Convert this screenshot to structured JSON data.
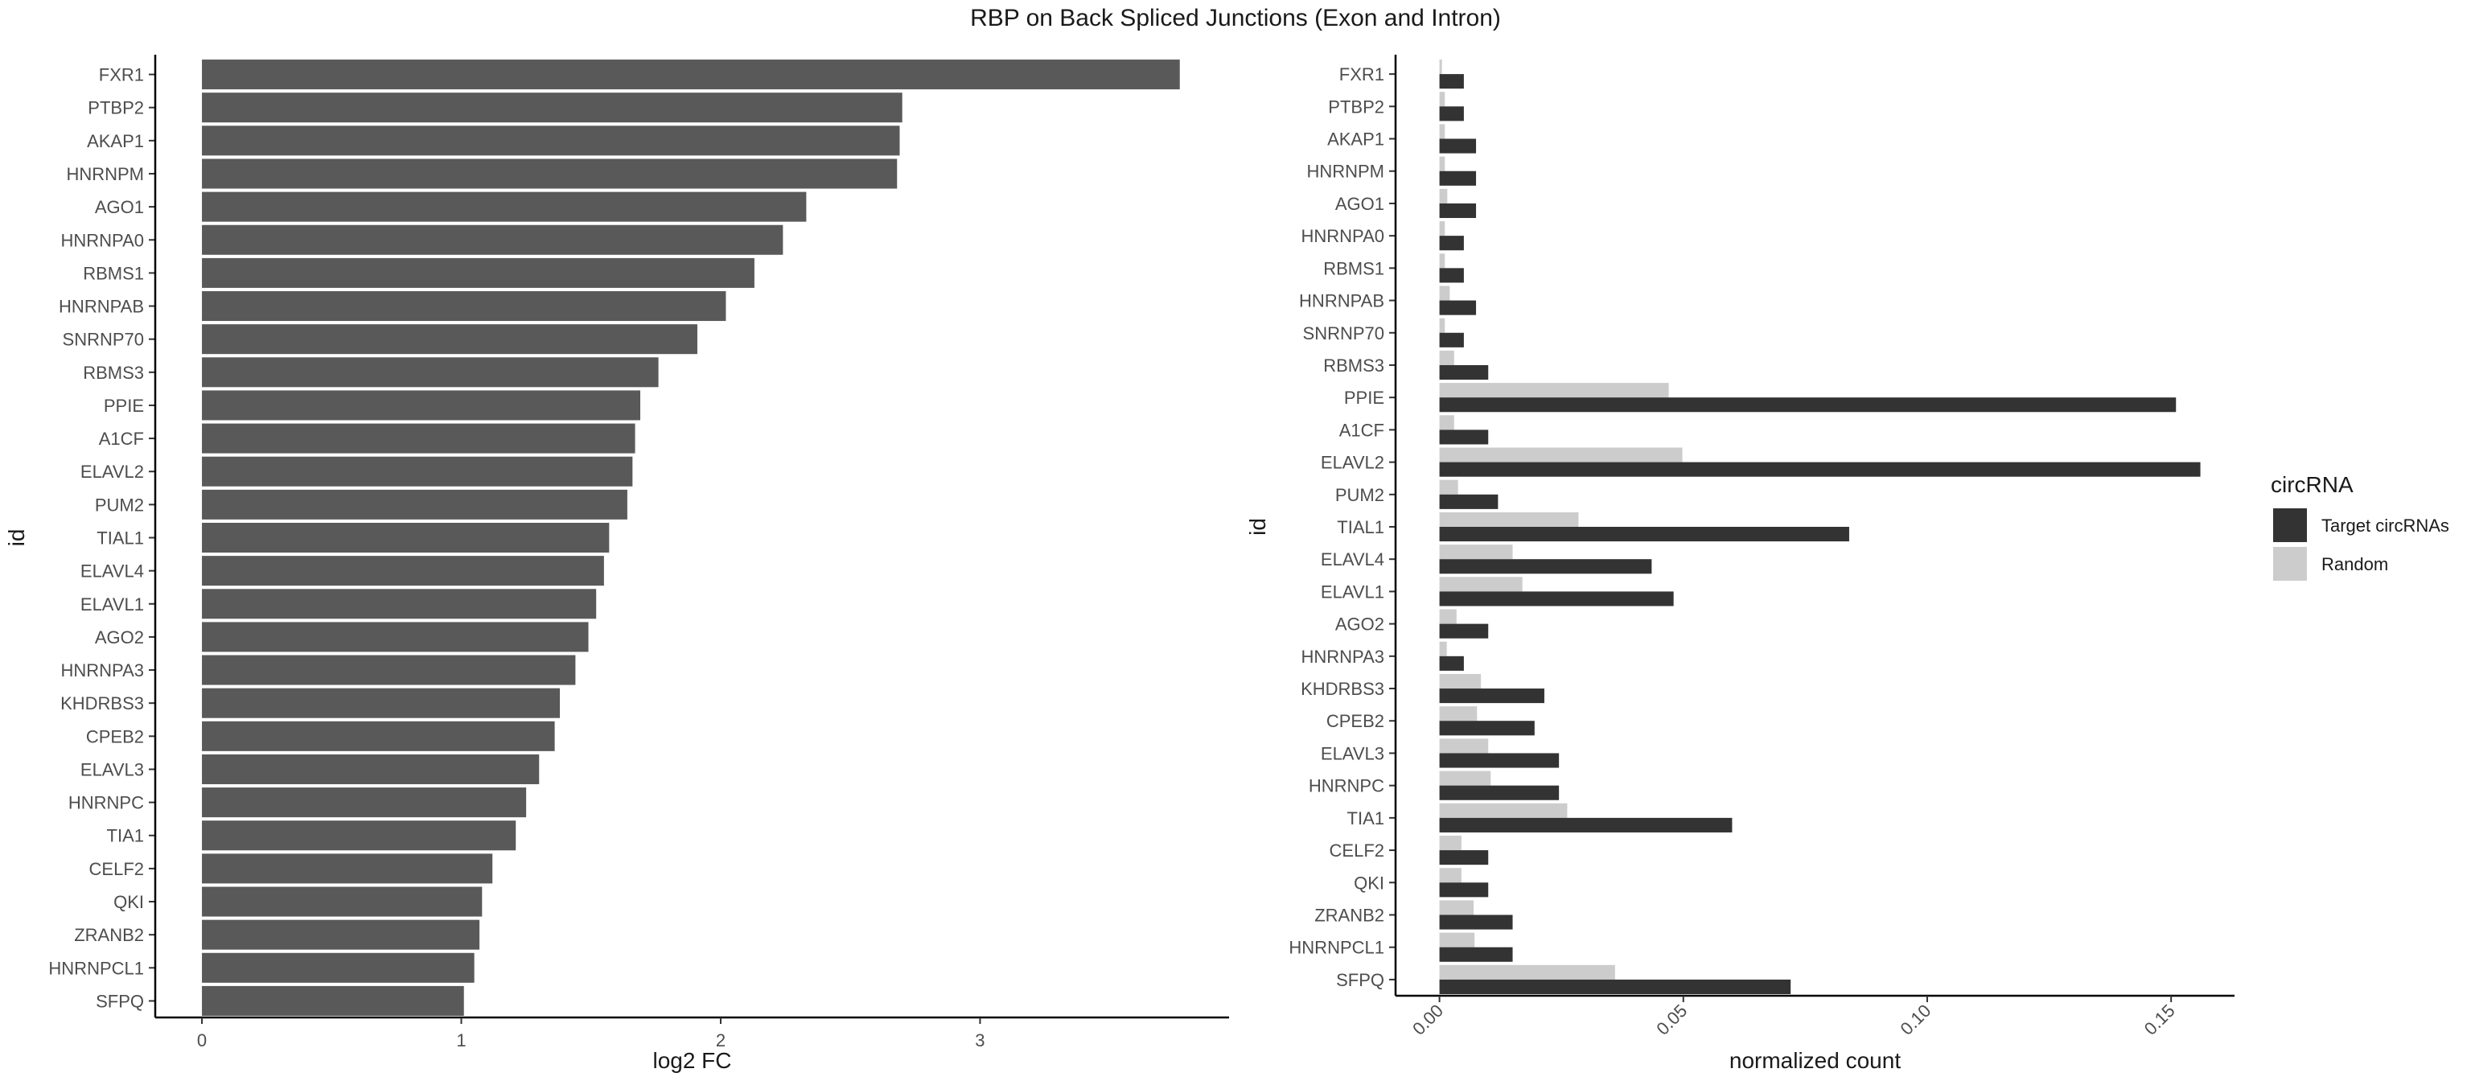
{
  "title": "RBP on Back Spliced Junctions (Exon and Intron)",
  "colors": {
    "left_bar": "#595959",
    "target": "#333333",
    "random": "#cccccc",
    "axis": "#000000"
  },
  "chart_data": [
    {
      "type": "bar",
      "orientation": "horizontal",
      "xlabel": "log2 FC",
      "ylabel": "id",
      "xlim": [
        -0.18,
        3.96
      ],
      "xticks": [
        0,
        1,
        2,
        3
      ],
      "xtick_labels": [
        "0",
        "1",
        "2",
        "3"
      ],
      "grid": false,
      "categories": [
        "FXR1",
        "PTBP2",
        "AKAP1",
        "HNRNPM",
        "AGO1",
        "HNRNPA0",
        "RBMS1",
        "HNRNPAB",
        "SNRNP70",
        "RBMS3",
        "PPIE",
        "A1CF",
        "ELAVL2",
        "PUM2",
        "TIAL1",
        "ELAVL4",
        "ELAVL1",
        "AGO2",
        "HNRNPA3",
        "KHDRBS3",
        "CPEB2",
        "ELAVL3",
        "HNRNPC",
        "TIA1",
        "CELF2",
        "QKI",
        "ZRANB2",
        "HNRNPCL1",
        "SFPQ"
      ],
      "values": [
        3.77,
        2.7,
        2.69,
        2.68,
        2.33,
        2.24,
        2.13,
        2.02,
        1.91,
        1.76,
        1.69,
        1.67,
        1.66,
        1.64,
        1.57,
        1.55,
        1.52,
        1.49,
        1.44,
        1.38,
        1.36,
        1.3,
        1.25,
        1.21,
        1.12,
        1.08,
        1.07,
        1.05,
        1.01
      ]
    },
    {
      "type": "bar",
      "orientation": "horizontal",
      "grouped": true,
      "xlabel": "normalized count",
      "ylabel": "id",
      "xlim": [
        -0.009,
        0.163
      ],
      "xticks": [
        0,
        0.05,
        0.1,
        0.15
      ],
      "xtick_labels": [
        "0.00",
        "0.05",
        "0.10",
        "0.15"
      ],
      "grid": false,
      "legend": {
        "title": "circRNA",
        "position": "right"
      },
      "categories": [
        "FXR1",
        "PTBP2",
        "AKAP1",
        "HNRNPM",
        "AGO1",
        "HNRNPA0",
        "RBMS1",
        "HNRNPAB",
        "SNRNP70",
        "RBMS3",
        "PPIE",
        "A1CF",
        "ELAVL2",
        "PUM2",
        "TIAL1",
        "ELAVL4",
        "ELAVL1",
        "AGO2",
        "HNRNPA3",
        "KHDRBS3",
        "CPEB2",
        "ELAVL3",
        "HNRNPC",
        "TIA1",
        "CELF2",
        "QKI",
        "ZRANB2",
        "HNRNPCL1",
        "SFPQ"
      ],
      "series": [
        {
          "name": "Target circRNAs",
          "color": "#333333",
          "values": [
            0.005,
            0.005,
            0.0075,
            0.0075,
            0.0075,
            0.005,
            0.005,
            0.0075,
            0.005,
            0.01,
            0.151,
            0.01,
            0.156,
            0.012,
            0.084,
            0.0435,
            0.048,
            0.01,
            0.005,
            0.0215,
            0.0195,
            0.0245,
            0.0245,
            0.06,
            0.01,
            0.01,
            0.015,
            0.015,
            0.072
          ]
        },
        {
          "name": "Random",
          "color": "#cccccc",
          "values": [
            0.0005,
            0.0011,
            0.0011,
            0.0011,
            0.0016,
            0.0011,
            0.0011,
            0.0021,
            0.0011,
            0.003,
            0.047,
            0.003,
            0.0498,
            0.0038,
            0.0285,
            0.015,
            0.017,
            0.0035,
            0.0015,
            0.0085,
            0.0077,
            0.01,
            0.0105,
            0.0262,
            0.0045,
            0.0045,
            0.007,
            0.0072,
            0.036
          ]
        }
      ]
    }
  ]
}
